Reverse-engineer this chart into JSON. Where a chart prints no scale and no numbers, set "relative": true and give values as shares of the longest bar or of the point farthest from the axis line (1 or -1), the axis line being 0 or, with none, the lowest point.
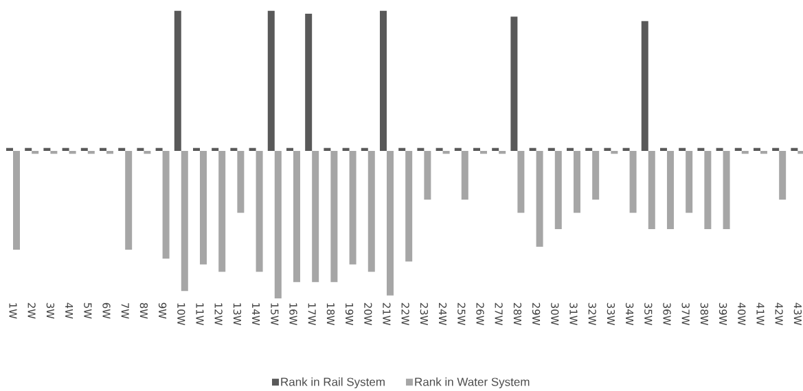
{
  "chart_data": {
    "type": "bar",
    "relative": true,
    "legend": "bottom",
    "categories": [
      "1W",
      "2W",
      "3W",
      "4W",
      "5W",
      "6W",
      "7W",
      "8W",
      "9W",
      "10W",
      "11W",
      "12W",
      "13W",
      "14W",
      "15W",
      "16W",
      "17W",
      "18W",
      "19W",
      "20W",
      "21W",
      "22W",
      "23W",
      "24W",
      "25W",
      "26W",
      "27W",
      "28W",
      "29W",
      "30W",
      "31W",
      "32W",
      "33W",
      "34W",
      "35W",
      "36W",
      "37W",
      "38W",
      "39W",
      "40W",
      "41W",
      "42W",
      "43W"
    ],
    "series": [
      {
        "name": "Rank in Rail System",
        "color": "#595959",
        "values": [
          0.02,
          0.02,
          0.02,
          0.02,
          0.02,
          0.02,
          0.02,
          0.02,
          0.02,
          0.95,
          0.02,
          0.02,
          0.02,
          0.02,
          0.95,
          0.02,
          0.93,
          0.02,
          0.02,
          0.02,
          0.95,
          0.02,
          0.02,
          0.02,
          0.02,
          0.02,
          0.02,
          0.91,
          0.02,
          0.02,
          0.02,
          0.02,
          0.02,
          0.02,
          0.88,
          0.02,
          0.02,
          0.02,
          0.02,
          0.02,
          0.02,
          0.02,
          0.02
        ]
      },
      {
        "name": "Rank in Water System",
        "color": "#a6a6a6",
        "values": [
          -0.67,
          -0.02,
          -0.02,
          -0.02,
          -0.02,
          -0.02,
          -0.67,
          -0.02,
          -0.73,
          -0.95,
          -0.77,
          -0.82,
          -0.42,
          -0.82,
          -1,
          -0.89,
          -0.89,
          -0.89,
          -0.77,
          -0.82,
          -0.98,
          -0.75,
          -0.33,
          -0.02,
          -0.33,
          -0.02,
          -0.02,
          -0.42,
          -0.65,
          -0.53,
          -0.42,
          -0.33,
          -0.02,
          -0.42,
          -0.53,
          -0.53,
          -0.42,
          -0.53,
          -0.53,
          -0.02,
          -0.02,
          -0.33,
          -0.02
        ]
      }
    ]
  }
}
